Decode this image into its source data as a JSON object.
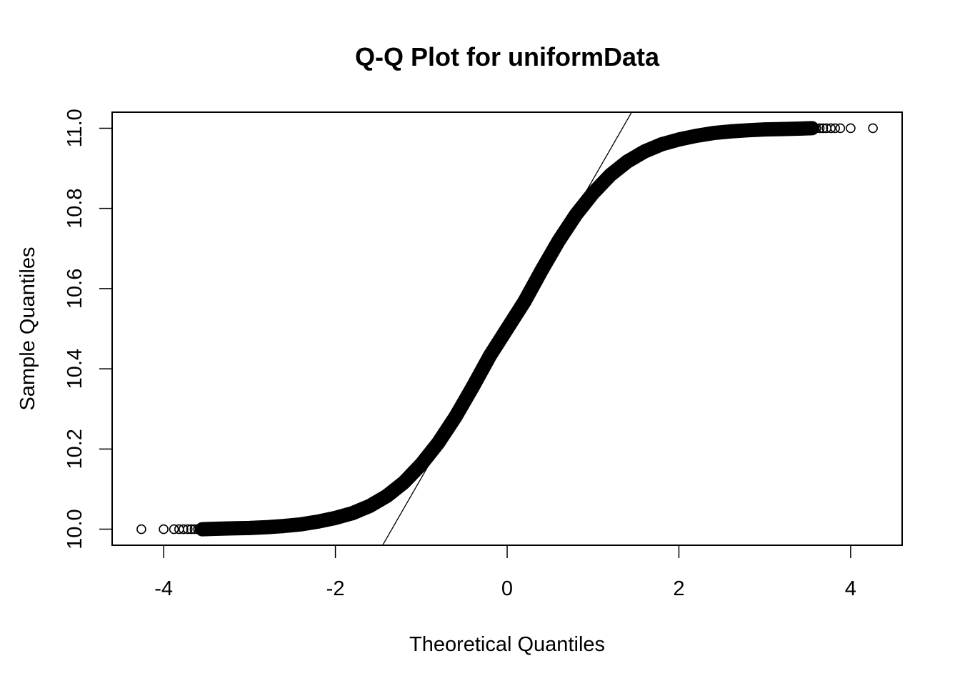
{
  "chart_data": {
    "type": "scatter",
    "title": "Q-Q Plot for uniformData",
    "xlabel": "Theoretical Quantiles",
    "ylabel": "Sample Quantiles",
    "xlim": [
      -4.6,
      4.6
    ],
    "ylim": [
      9.96,
      11.04
    ],
    "x_ticks": [
      -4,
      -2,
      0,
      2,
      4
    ],
    "x_tick_labels": [
      "-4",
      "-2",
      "0",
      "2",
      "4"
    ],
    "y_ticks": [
      10.0,
      10.2,
      10.4,
      10.6,
      10.8,
      11.0
    ],
    "y_tick_labels": [
      "10.0",
      "10.2",
      "10.4",
      "10.6",
      "10.8",
      "11.0"
    ],
    "grid": false,
    "legend": "none",
    "marker": "open-circle",
    "colors": {
      "points": "#000000",
      "line": "#000000",
      "axes": "#000000"
    },
    "series": [
      {
        "values_description": "sample quantiles vs theoretical normal quantiles",
        "points": [
          [
            -4.26,
            10.0
          ],
          [
            -4.0,
            10.0
          ],
          [
            -3.88,
            10.0
          ],
          [
            -3.82,
            10.0
          ],
          [
            -3.77,
            10.0
          ],
          [
            -3.72,
            10.0
          ],
          [
            -3.68,
            10.0
          ],
          [
            -3.64,
            10.0
          ],
          [
            -3.6,
            10.0
          ],
          [
            -3.55,
            10.0
          ],
          [
            -3.4,
            10.001
          ],
          [
            -3.2,
            10.002
          ],
          [
            -3.0,
            10.003
          ],
          [
            -2.8,
            10.005
          ],
          [
            -2.6,
            10.008
          ],
          [
            -2.4,
            10.012
          ],
          [
            -2.2,
            10.019
          ],
          [
            -2.0,
            10.028
          ],
          [
            -1.8,
            10.04
          ],
          [
            -1.6,
            10.058
          ],
          [
            -1.4,
            10.083
          ],
          [
            -1.2,
            10.117
          ],
          [
            -1.0,
            10.162
          ],
          [
            -0.8,
            10.216
          ],
          [
            -0.6,
            10.281
          ],
          [
            -0.4,
            10.355
          ],
          [
            -0.2,
            10.433
          ],
          [
            0.0,
            10.5
          ],
          [
            0.2,
            10.567
          ],
          [
            0.4,
            10.645
          ],
          [
            0.6,
            10.719
          ],
          [
            0.8,
            10.784
          ],
          [
            1.0,
            10.838
          ],
          [
            1.2,
            10.883
          ],
          [
            1.4,
            10.917
          ],
          [
            1.6,
            10.942
          ],
          [
            1.8,
            10.96
          ],
          [
            2.0,
            10.972
          ],
          [
            2.2,
            10.981
          ],
          [
            2.4,
            10.988
          ],
          [
            2.6,
            10.992
          ],
          [
            2.8,
            10.995
          ],
          [
            3.0,
            10.997
          ],
          [
            3.2,
            10.998
          ],
          [
            3.4,
            10.999
          ],
          [
            3.55,
            11.0
          ],
          [
            3.6,
            11.0
          ],
          [
            3.64,
            11.0
          ],
          [
            3.68,
            11.0
          ],
          [
            3.72,
            11.0
          ],
          [
            3.77,
            11.0
          ],
          [
            3.82,
            11.0
          ],
          [
            3.88,
            11.0
          ],
          [
            4.0,
            11.0
          ],
          [
            4.26,
            11.0
          ]
        ]
      }
    ],
    "reference_line": {
      "x1": -1.45,
      "y1": 9.96,
      "x2": 1.45,
      "y2": 11.04
    }
  }
}
